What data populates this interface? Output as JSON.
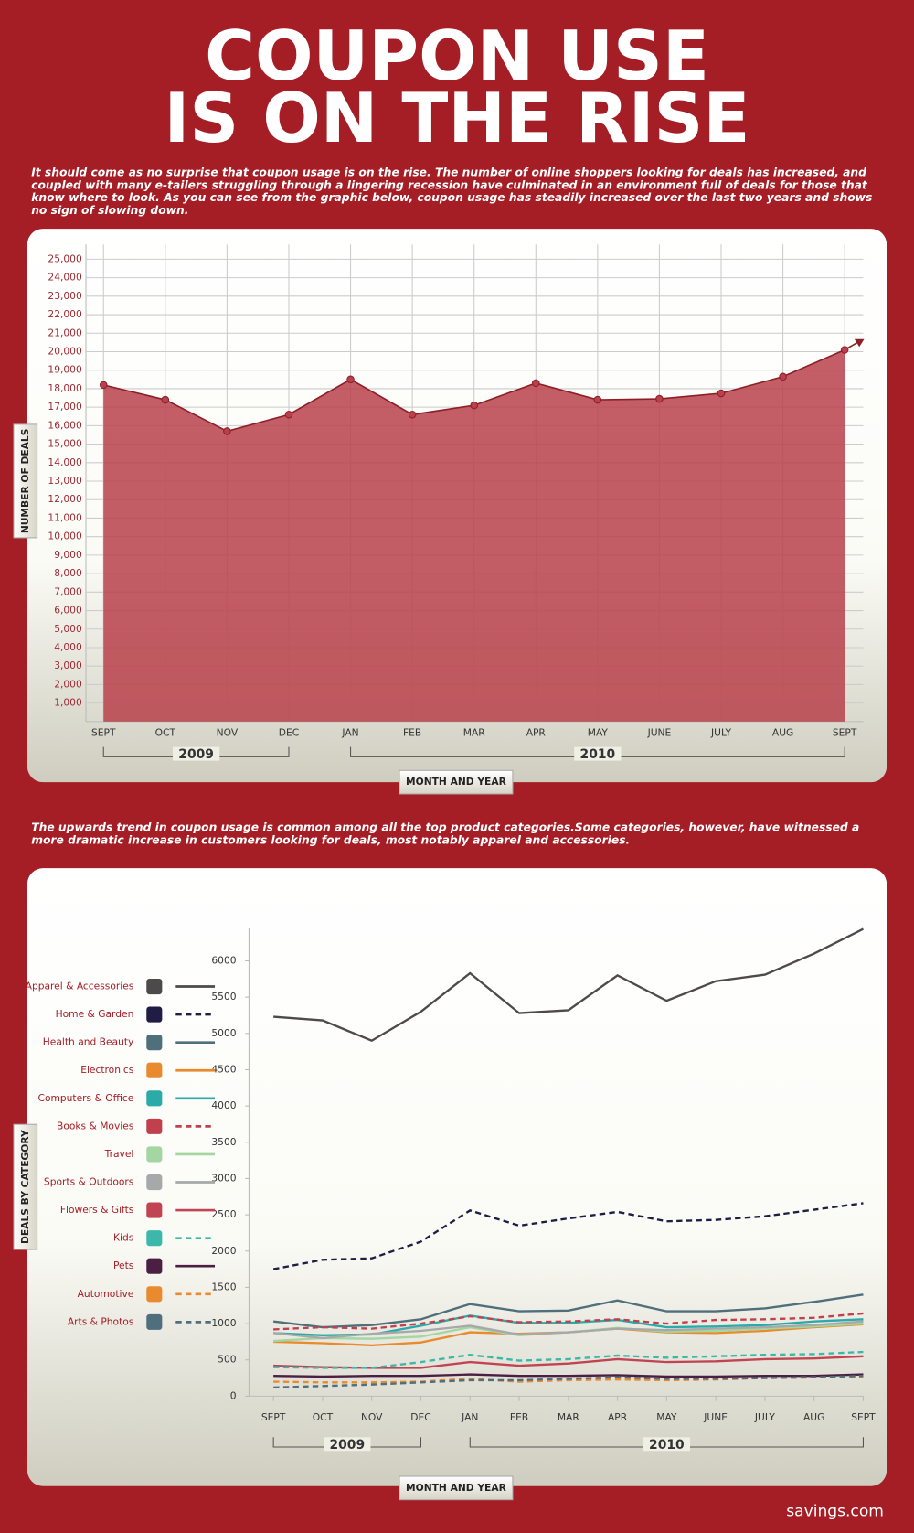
{
  "header": {
    "title": [
      "COUPON USE",
      "IS ON THE RISE"
    ],
    "intro": "It should come as no surprise that coupon usage is on the rise. The number of online shoppers looking for deals has increased, and coupled with many e-tailers struggling through a lingering recession have culminated in an environment full of deals for those that know where to look. As you can see from the graphic below, coupon usage has steadily increased over the last two years and shows no sign of slowing down."
  },
  "note": "The upwards trend in coupon usage is common among all the top product categories.Some categories, however, have witnessed a more dramatic increase in customers looking for deals, most notably apparel and accessories.",
  "footer": "savings.com",
  "chart_data": [
    {
      "type": "area",
      "y_label": "NUMBER OF DEALS",
      "x_label": "MONTH AND YEAR",
      "categories": [
        "SEPT",
        "OCT",
        "NOV",
        "DEC",
        "JAN",
        "FEB",
        "MAR",
        "APR",
        "MAY",
        "JUNE",
        "JULY",
        "AUG",
        "SEPT"
      ],
      "x_groups": [
        "2009",
        "2010"
      ],
      "values": [
        18200,
        17400,
        15700,
        16600,
        18500,
        16600,
        17100,
        18300,
        17400,
        17450,
        17750,
        18650,
        20100
      ],
      "color": "#b8414b",
      "line_color": "#8e1f28",
      "ylim": [
        0,
        25800
      ],
      "yticks": [
        {
          "value": 1000,
          "label": "1,000"
        },
        {
          "value": 2000,
          "label": "2,000"
        },
        {
          "value": 3000,
          "label": "3,000"
        },
        {
          "value": 4000,
          "label": "4,000"
        },
        {
          "value": 5000,
          "label": "5,000"
        },
        {
          "value": 6000,
          "label": "6,000"
        },
        {
          "value": 7000,
          "label": "7,000"
        },
        {
          "value": 8000,
          "label": "8,000"
        },
        {
          "value": 9000,
          "label": "9,000"
        },
        {
          "value": 10000,
          "label": "10,000"
        },
        {
          "value": 11000,
          "label": "11,000"
        },
        {
          "value": 12000,
          "label": "12,000"
        },
        {
          "value": 13000,
          "label": "13,000"
        },
        {
          "value": 14000,
          "label": "14,000"
        },
        {
          "value": 15000,
          "label": "15,000"
        },
        {
          "value": 16000,
          "label": "16,000"
        },
        {
          "value": 17000,
          "label": "17,000"
        },
        {
          "value": 18000,
          "label": "18,000"
        },
        {
          "value": 19000,
          "label": "19,000"
        },
        {
          "value": 20000,
          "label": "20,000"
        },
        {
          "value": 21000,
          "label": "21,000"
        },
        {
          "value": 22000,
          "label": "22,000"
        },
        {
          "value": 23000,
          "label": "23,000"
        },
        {
          "value": 24000,
          "label": "24,000"
        },
        {
          "value": 25000,
          "label": "25,000"
        }
      ],
      "grid": true
    },
    {
      "type": "line",
      "y_label": "DEALS BY CATEGORY",
      "x_label": "MONTH AND YEAR",
      "categories": [
        "SEPT",
        "OCT",
        "NOV",
        "DEC",
        "JAN",
        "FEB",
        "MAR",
        "APR",
        "MAY",
        "JUNE",
        "JULY",
        "AUG",
        "SEPT"
      ],
      "x_groups": [
        "2009",
        "2010"
      ],
      "ylim": [
        0,
        6450
      ],
      "yticks": [
        0,
        500,
        1000,
        1500,
        2000,
        2500,
        3000,
        3500,
        4000,
        4500,
        5000,
        5500,
        6000
      ],
      "grid": false,
      "series": [
        {
          "name": "Apparel & Accessories",
          "color": "#4d4a4b",
          "dash": false,
          "values": [
            5230,
            5180,
            4900,
            5300,
            5830,
            5280,
            5320,
            5800,
            5450,
            5720,
            5810,
            6100,
            6440
          ]
        },
        {
          "name": "Home & Garden",
          "color": "#1f1d45",
          "dash": true,
          "values": [
            1750,
            1880,
            1900,
            2130,
            2560,
            2350,
            2450,
            2540,
            2410,
            2430,
            2480,
            2570,
            2660
          ]
        },
        {
          "name": "Health and Beauty",
          "color": "#4f6f7c",
          "dash": false,
          "values": [
            1030,
            950,
            980,
            1060,
            1270,
            1170,
            1180,
            1320,
            1170,
            1170,
            1210,
            1300,
            1400
          ]
        },
        {
          "name": "Electronics",
          "color": "#e98a2e",
          "dash": false,
          "values": [
            750,
            730,
            700,
            740,
            880,
            860,
            880,
            930,
            880,
            870,
            900,
            950,
            990
          ]
        },
        {
          "name": "Computers & Office",
          "color": "#2aaaa8",
          "dash": false,
          "values": [
            870,
            840,
            850,
            970,
            1110,
            1010,
            1010,
            1050,
            950,
            960,
            980,
            1030,
            1060
          ]
        },
        {
          "name": "Books & Movies",
          "color": "#c0404d",
          "dash": true,
          "values": [
            920,
            950,
            930,
            1000,
            1100,
            1020,
            1030,
            1060,
            1000,
            1050,
            1060,
            1080,
            1140
          ]
        },
        {
          "name": "Travel",
          "color": "#a3d6a0",
          "dash": false,
          "values": [
            760,
            800,
            790,
            820,
            950,
            840,
            880,
            940,
            890,
            900,
            930,
            960,
            1000
          ]
        },
        {
          "name": "Sports & Outdoors",
          "color": "#a6a8aa",
          "dash": false,
          "values": [
            870,
            800,
            860,
            900,
            970,
            850,
            880,
            930,
            910,
            930,
            950,
            980,
            1030
          ]
        },
        {
          "name": "Flowers & Gifts",
          "color": "#c14452",
          "dash": false,
          "values": [
            420,
            400,
            390,
            390,
            470,
            420,
            450,
            510,
            470,
            480,
            510,
            520,
            550
          ]
        },
        {
          "name": "Kids",
          "color": "#3bb8aa",
          "dash": true,
          "values": [
            400,
            390,
            390,
            470,
            570,
            490,
            510,
            560,
            530,
            550,
            570,
            580,
            610
          ]
        },
        {
          "name": "Pets",
          "color": "#4b1f43",
          "dash": false,
          "values": [
            280,
            270,
            280,
            280,
            300,
            280,
            280,
            290,
            270,
            270,
            280,
            280,
            300
          ]
        },
        {
          "name": "Automotive",
          "color": "#e98a2e",
          "dash": true,
          "values": [
            200,
            190,
            190,
            200,
            240,
            200,
            220,
            230,
            220,
            230,
            250,
            260,
            270
          ]
        },
        {
          "name": "Arts & Photos",
          "color": "#4f6f7c",
          "dash": true,
          "values": [
            120,
            140,
            160,
            190,
            220,
            220,
            240,
            260,
            240,
            240,
            250,
            260,
            280
          ]
        }
      ]
    }
  ]
}
